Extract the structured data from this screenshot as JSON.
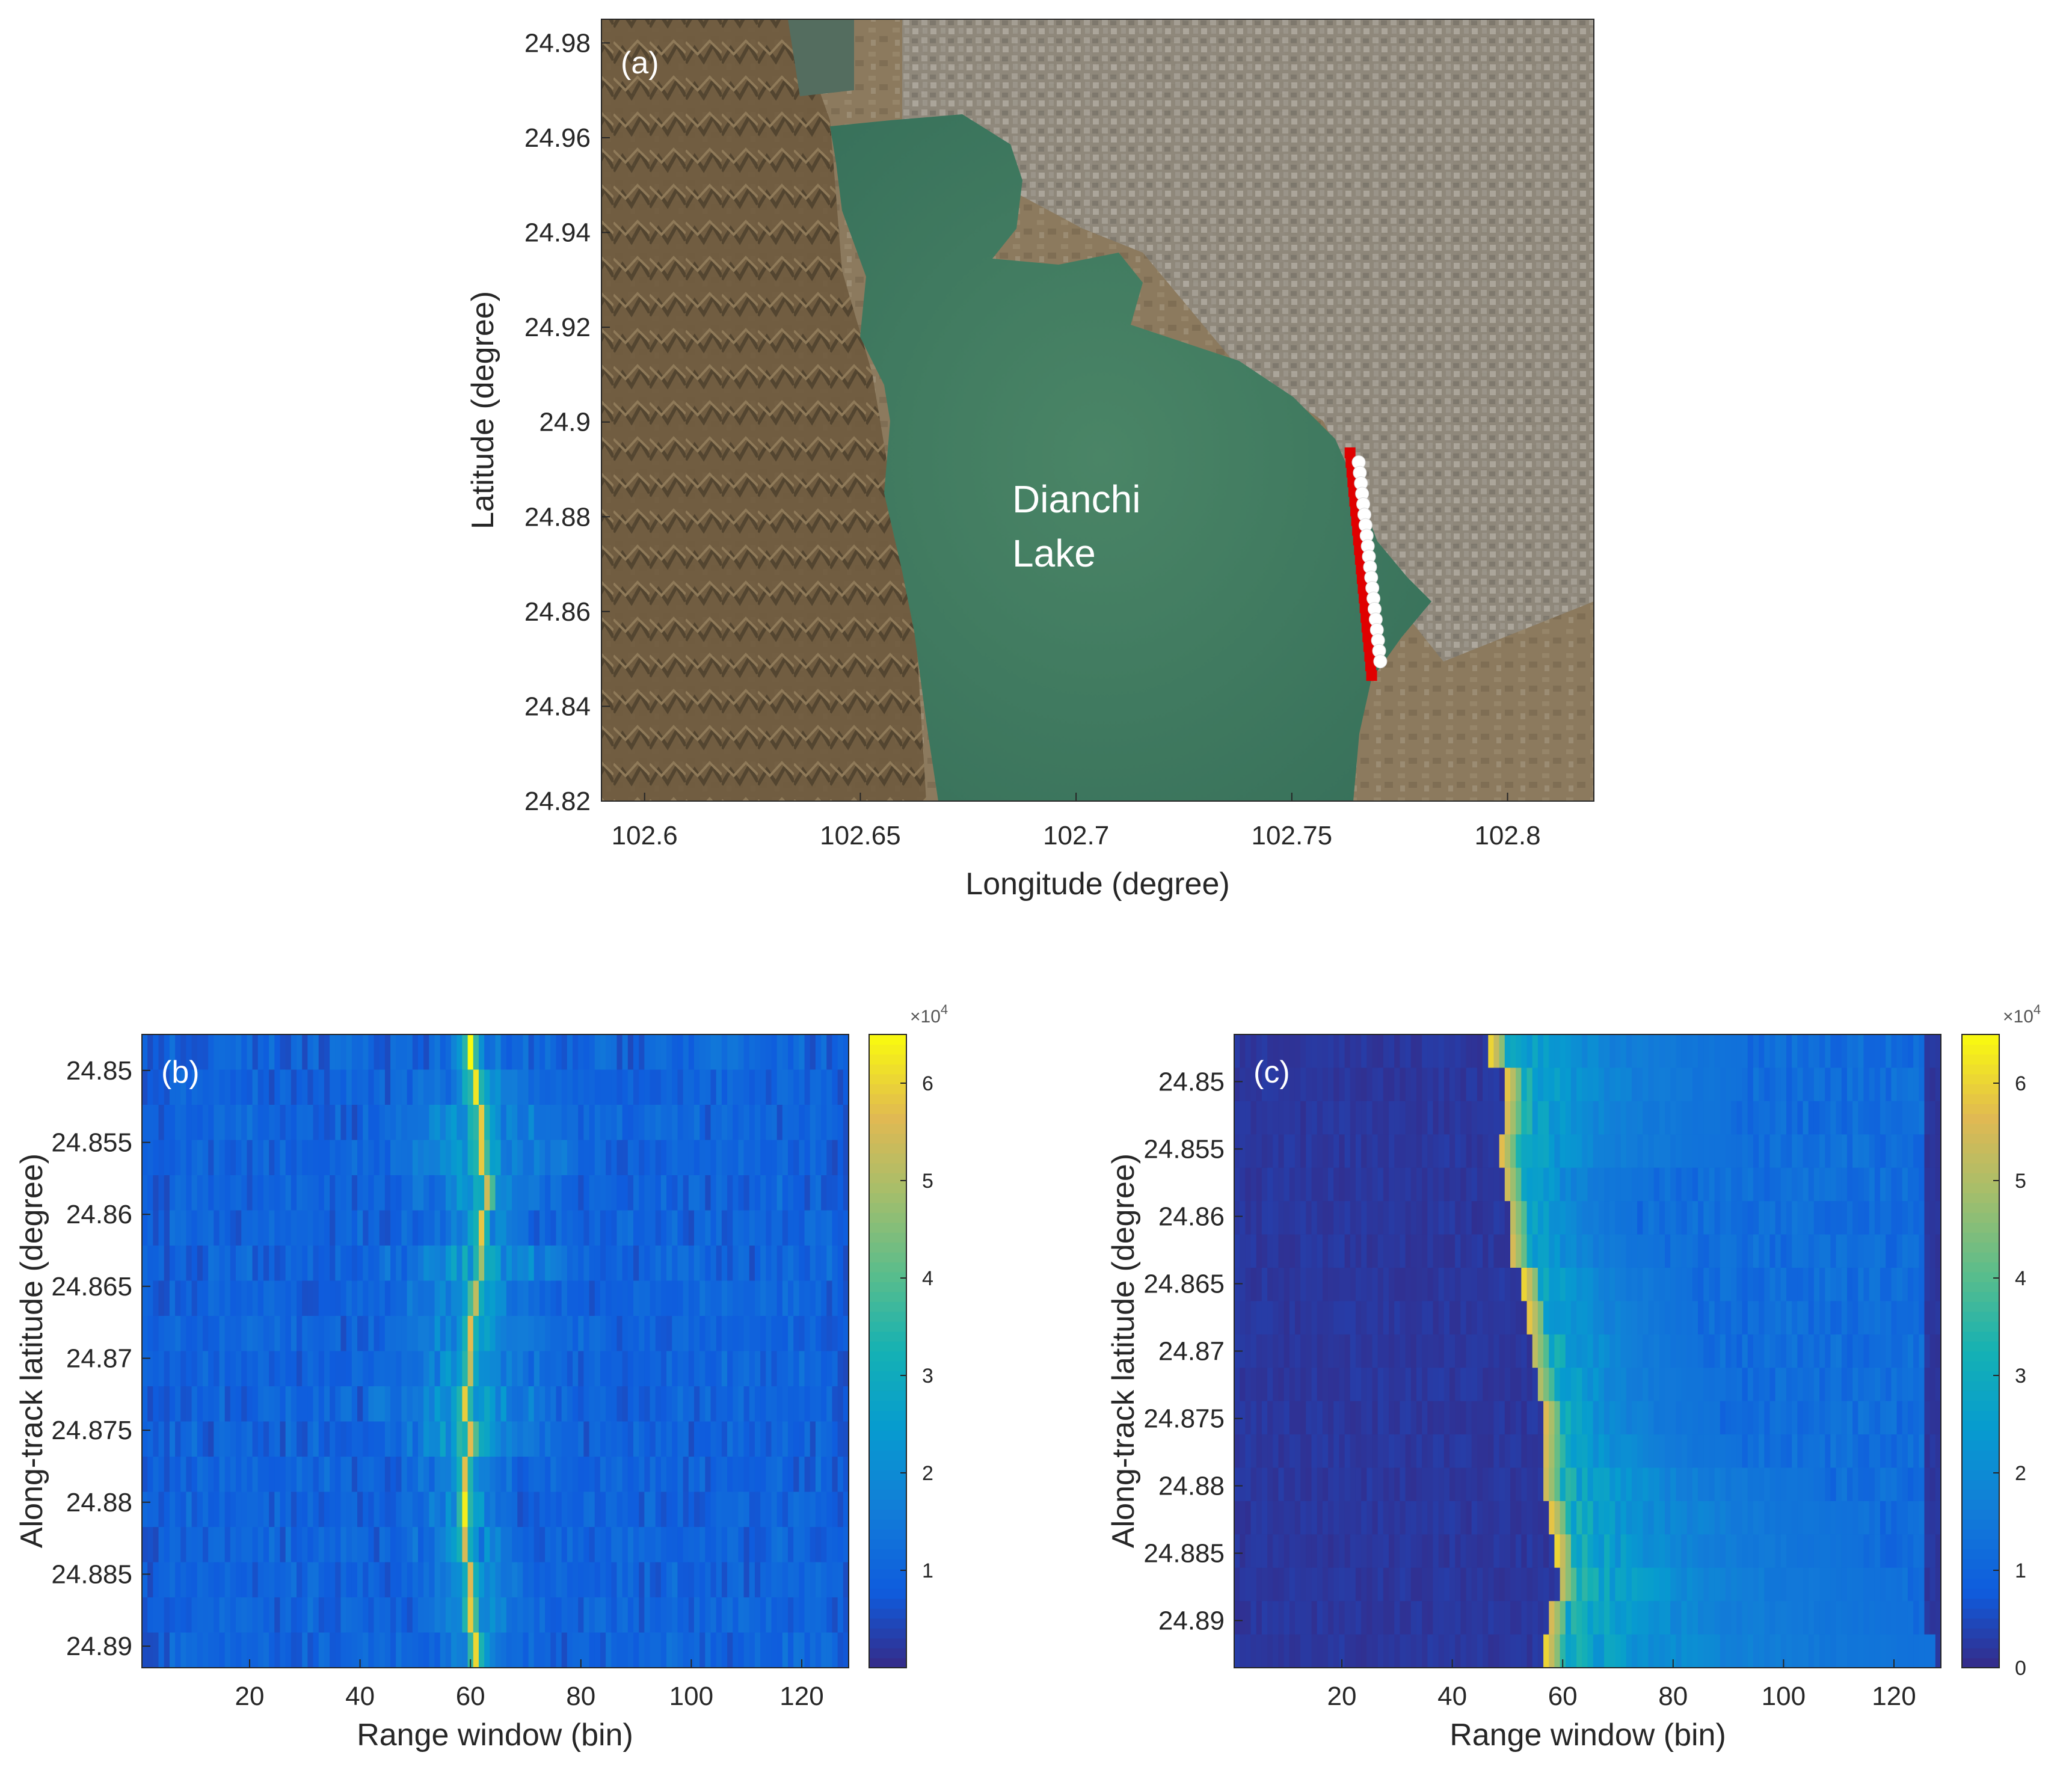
{
  "figure": {
    "panels": [
      "(a)",
      "(b)",
      "(c)"
    ]
  },
  "chart_data": [
    {
      "type": "scatter",
      "panel": "(a)",
      "xlabel": "Longitude (degree)",
      "ylabel": "Latitude (degree)",
      "xlim": [
        102.59,
        102.82
      ],
      "ylim": [
        24.82,
        24.985
      ],
      "xticks": [
        "102.6",
        "102.65",
        "102.7",
        "102.75",
        "102.8"
      ],
      "yticks": [
        "24.82",
        "24.84",
        "24.86",
        "24.88",
        "24.9",
        "24.92",
        "24.94",
        "24.96",
        "24.98"
      ],
      "annotation": [
        "Dianchi",
        "Lake"
      ],
      "background": "satellite image",
      "colors": {
        "lake": "#3f7a5f",
        "land": "#8c7a5e",
        "track_red": "#e00000",
        "track_white": "#ffffff"
      },
      "series": [
        {
          "color": "#e00000",
          "marker": "square",
          "x_start": 102.7635,
          "y_start": 24.8935,
          "x_end": 102.7685,
          "y_end": 24.8465,
          "count": 24
        },
        {
          "color": "#ffffff",
          "marker": "circle",
          "x_start": 102.7655,
          "y_start": 24.8915,
          "x_end": 102.7705,
          "y_end": 24.8495,
          "count": 20
        }
      ]
    },
    {
      "type": "heatmap",
      "panel": "(b)",
      "xlabel": "Range window (bin)",
      "ylabel": "Along-track latitude (degree)",
      "xlim": [
        0.5,
        128.5
      ],
      "ylim": [
        24.8475,
        24.8915
      ],
      "xticks": [
        "20",
        "40",
        "60",
        "80",
        "100",
        "120"
      ],
      "yticks": [
        "24.85",
        "24.855",
        "24.86",
        "24.865",
        "24.87",
        "24.875",
        "24.88",
        "24.885",
        "24.89"
      ],
      "colorbar": {
        "ticks": [
          "1",
          "2",
          "3",
          "4",
          "5",
          "6"
        ],
        "exponent": "×10",
        "exponent_power": "4",
        "range": [
          0,
          65000
        ]
      },
      "row_lats": [
        24.849,
        24.8515,
        24.854,
        24.8565,
        24.859,
        24.8615,
        24.864,
        24.8665,
        24.869,
        24.8715,
        24.874,
        24.8765,
        24.879,
        24.8815,
        24.884,
        24.8865,
        24.889,
        24.8915
      ],
      "peak_bins": [
        60,
        61,
        62,
        62,
        63,
        62,
        62,
        61,
        60,
        60,
        59,
        60,
        59,
        59,
        59,
        60,
        60,
        61
      ],
      "peak_values": [
        62000,
        60000,
        57000,
        58000,
        52000,
        56000,
        47000,
        52000,
        55000,
        50000,
        58000,
        55000,
        56000,
        60000,
        52000,
        54000,
        58000,
        60000
      ],
      "spread": [
        5,
        10,
        16,
        16,
        14,
        8,
        18,
        12,
        14,
        12,
        18,
        15,
        8,
        8,
        9,
        10,
        10,
        6
      ],
      "base_level": 8000,
      "colormap": "parula"
    },
    {
      "type": "heatmap",
      "panel": "(c)",
      "xlabel": "Range window (bin)",
      "ylabel": "Along-track latitude (degree)",
      "xlim": [
        0.5,
        128.5
      ],
      "ylim": [
        24.8465,
        24.8935
      ],
      "xticks": [
        "20",
        "40",
        "60",
        "80",
        "100",
        "120"
      ],
      "yticks": [
        "24.85",
        "24.855",
        "24.86",
        "24.865",
        "24.87",
        "24.875",
        "24.88",
        "24.885",
        "24.89"
      ],
      "colorbar": {
        "ticks": [
          "0",
          "1",
          "2",
          "3",
          "4",
          "5",
          "6"
        ],
        "exponent": "×10",
        "exponent_power": "4",
        "range": [
          0,
          65000
        ]
      },
      "row_lats": [
        24.848,
        24.8505,
        24.853,
        24.8555,
        24.858,
        24.8605,
        24.863,
        24.8655,
        24.868,
        24.8705,
        24.873,
        24.8755,
        24.878,
        24.8805,
        24.883,
        24.8855,
        24.888,
        24.8905,
        24.893
      ],
      "peak_bins": [
        47,
        50,
        50,
        49,
        50,
        51,
        51,
        53,
        54,
        55,
        56,
        57,
        57,
        57,
        58,
        59,
        60,
        58,
        57
      ],
      "peak_values": [
        60000,
        58000,
        55000,
        57000,
        54000,
        52000,
        55000,
        60000,
        58000,
        52000,
        50000,
        56000,
        55000,
        54000,
        58000,
        60000,
        52000,
        55000,
        60000
      ],
      "tail_length": [
        45,
        42,
        40,
        40,
        25,
        22,
        25,
        30,
        30,
        30,
        30,
        30,
        35,
        50,
        55,
        55,
        60,
        65,
        70
      ],
      "base_level": 2000,
      "colormap": "parula"
    }
  ]
}
